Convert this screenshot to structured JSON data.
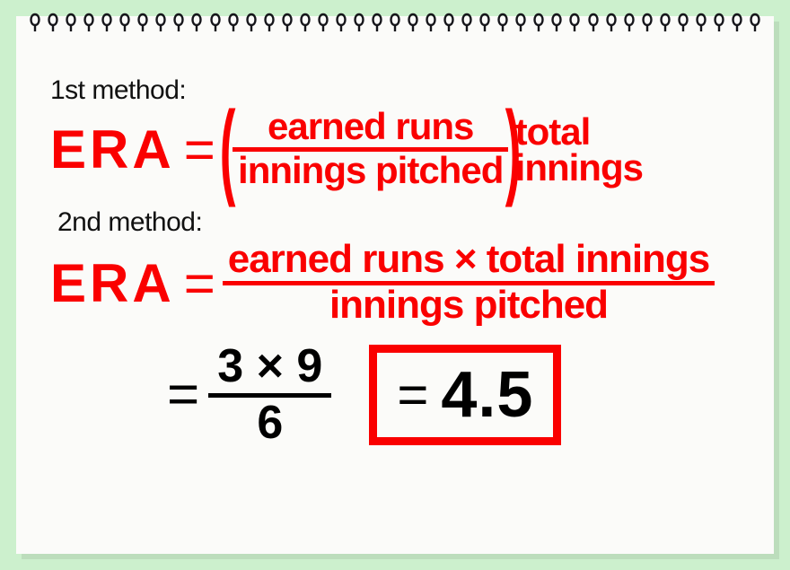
{
  "colors": {
    "page_bg": "#ccf0cd",
    "paper_bg": "#fbfbf9",
    "accent": "#fa0000",
    "text": "#111111",
    "shadow": "rgba(0,0,0,0.08)"
  },
  "spiral": {
    "ring_count": 41
  },
  "method1": {
    "label": "1st method:",
    "lhs": "ERA",
    "eq": "=",
    "fraction": {
      "numerator": "earned runs",
      "denominator": "innings pitched"
    },
    "multiplier": {
      "top": "total",
      "bottom": "innings"
    }
  },
  "method2": {
    "label": "2nd method:",
    "lhs": "ERA",
    "eq": "=",
    "fraction": {
      "numerator": "earned runs  ×  total innings",
      "denominator": "innings pitched"
    }
  },
  "example": {
    "eq1": "=",
    "fraction": {
      "numerator": "3 × 9",
      "denominator": "6"
    },
    "eq2": "=",
    "result": "4.5"
  }
}
